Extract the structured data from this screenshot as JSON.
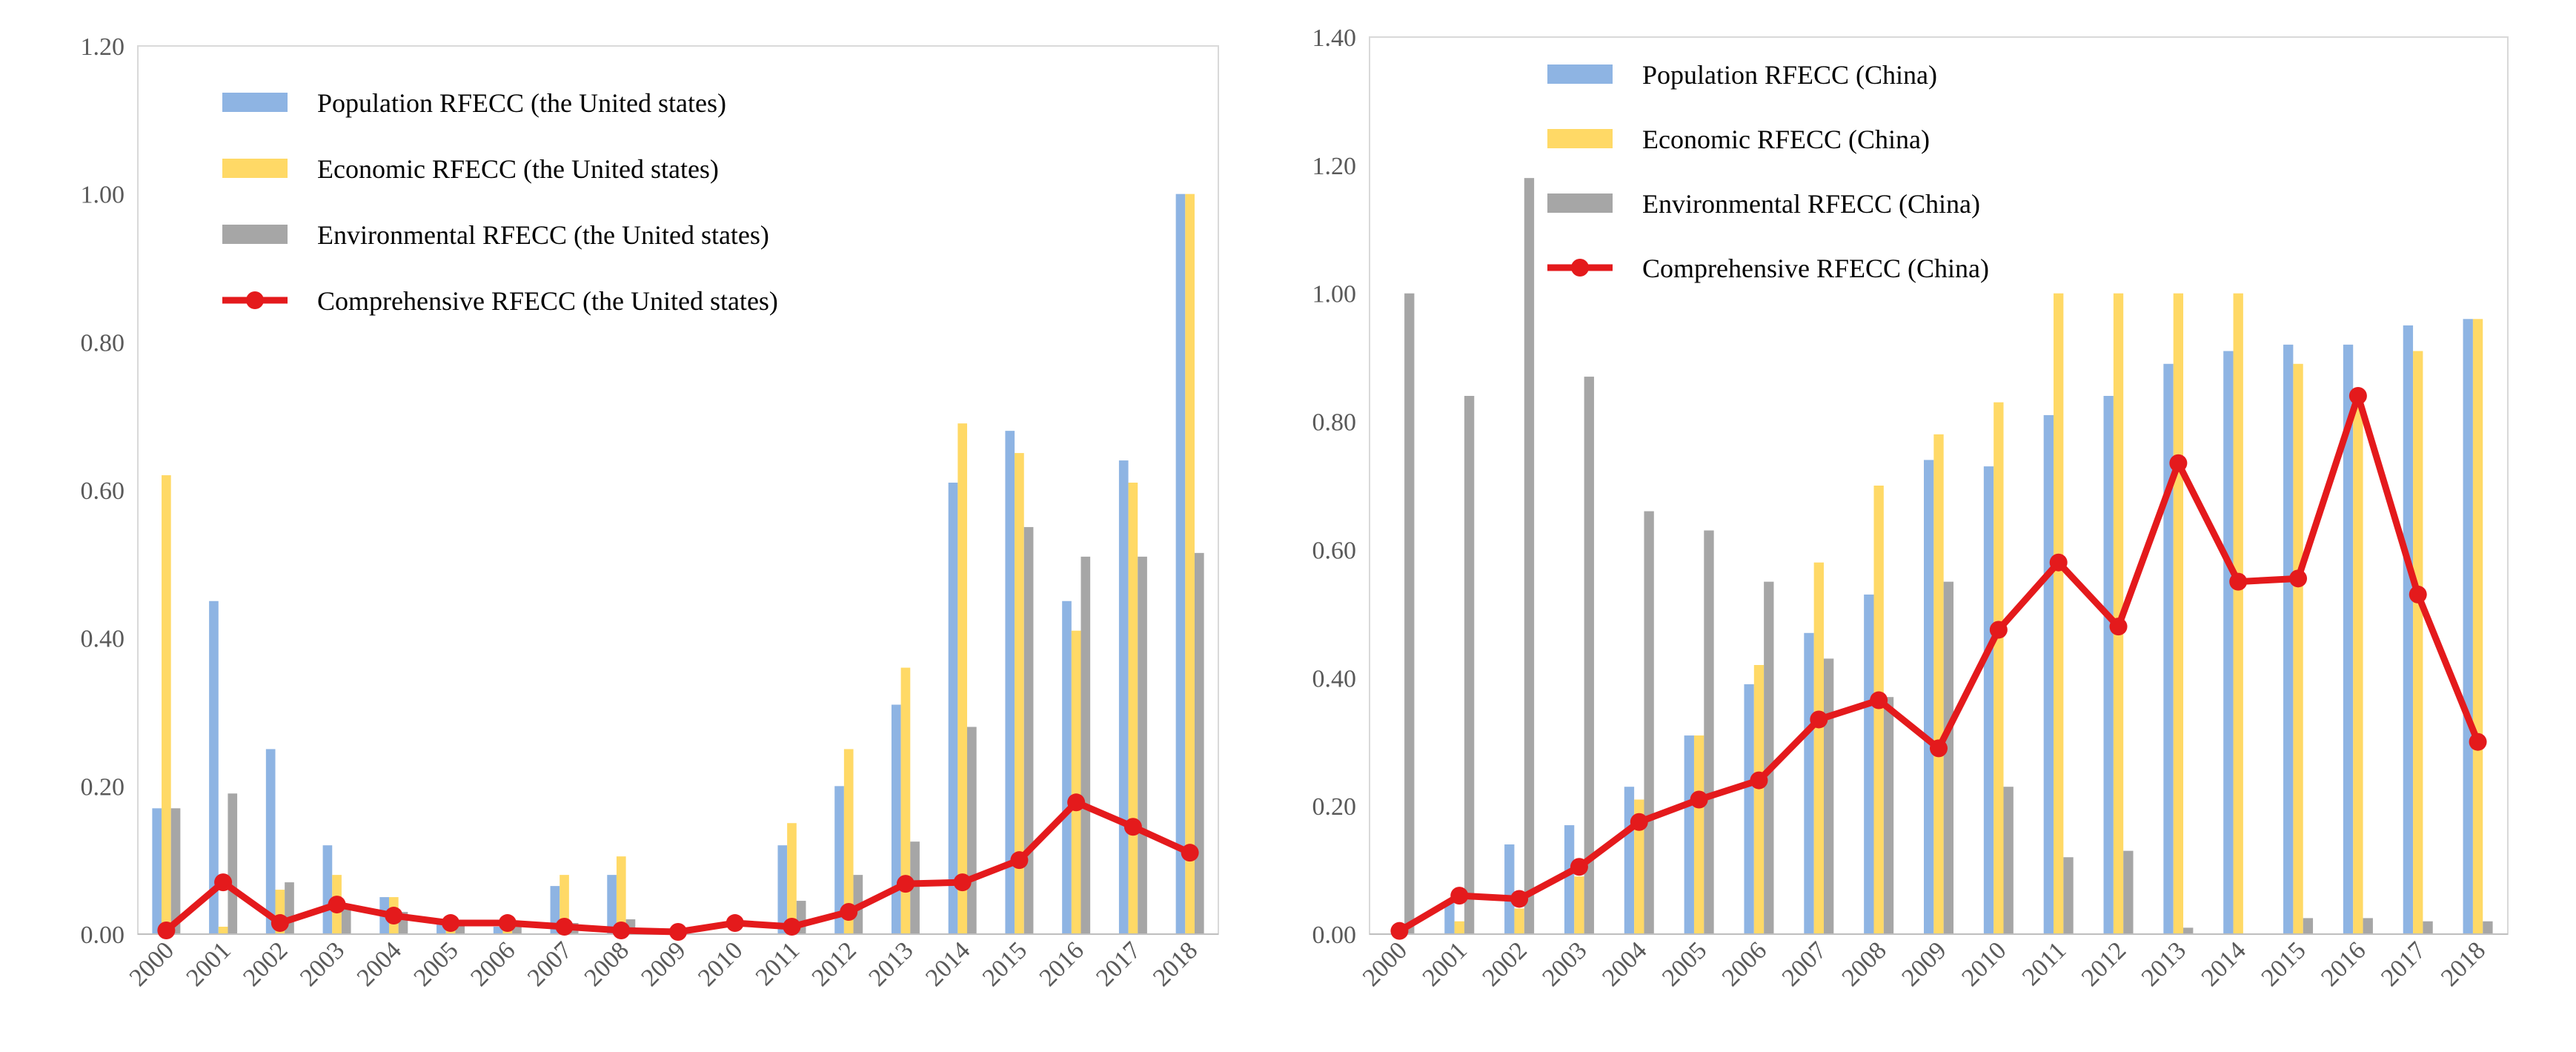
{
  "chart_data": [
    {
      "type": "bar",
      "id": "us",
      "title": "",
      "xlabel": "",
      "ylabel": "",
      "ylim": [
        0,
        1.2
      ],
      "yticks": [
        "0.00",
        "0.20",
        "0.40",
        "0.60",
        "0.80",
        "1.00",
        "1.20"
      ],
      "categories": [
        "2000",
        "2001",
        "2002",
        "2003",
        "2004",
        "2005",
        "2006",
        "2007",
        "2008",
        "2009",
        "2010",
        "2011",
        "2012",
        "2013",
        "2014",
        "2015",
        "2016",
        "2017",
        "2018"
      ],
      "series": [
        {
          "name": "Population RFECC (the United states)",
          "kind": "bar",
          "color": "#8EB4E3",
          "values": [
            0.17,
            0.45,
            0.25,
            0.12,
            0.05,
            0.015,
            0.01,
            0.065,
            0.08,
            0.0,
            0.0,
            0.12,
            0.2,
            0.31,
            0.61,
            0.68,
            0.45,
            0.64,
            1.0
          ]
        },
        {
          "name": "Economic RFECC (the United states)",
          "kind": "bar",
          "color": "#FFD966",
          "values": [
            0.62,
            0.01,
            0.06,
            0.08,
            0.05,
            0.015,
            0.01,
            0.08,
            0.105,
            0.0,
            0.0,
            0.15,
            0.25,
            0.36,
            0.69,
            0.65,
            0.41,
            0.61,
            1.0
          ]
        },
        {
          "name": "Environmental   RFECC (the United states)",
          "kind": "bar",
          "color": "#A6A6A6",
          "values": [
            0.17,
            0.19,
            0.07,
            0.04,
            0.03,
            0.015,
            0.01,
            0.015,
            0.02,
            0.0,
            0.0,
            0.045,
            0.08,
            0.125,
            0.28,
            0.55,
            0.51,
            0.51,
            0.515
          ]
        },
        {
          "name": "Comprehensive RFECC (the United states)",
          "kind": "line",
          "color": "#E41A1C",
          "values": [
            0.005,
            0.07,
            0.015,
            0.04,
            0.025,
            0.015,
            0.015,
            0.01,
            0.005,
            0.003,
            0.015,
            0.01,
            0.03,
            0.068,
            0.07,
            0.1,
            0.178,
            0.145,
            0.11
          ]
        }
      ]
    },
    {
      "type": "bar",
      "id": "china",
      "title": "",
      "xlabel": "",
      "ylabel": "",
      "ylim": [
        0,
        1.4
      ],
      "yticks": [
        "0.00",
        "0.20",
        "0.40",
        "0.60",
        "0.80",
        "1.00",
        "1.20",
        "1.40"
      ],
      "categories": [
        "2000",
        "2001",
        "2002",
        "2003",
        "2004",
        "2005",
        "2006",
        "2007",
        "2008",
        "2009",
        "2010",
        "2011",
        "2012",
        "2013",
        "2014",
        "2015",
        "2016",
        "2017",
        "2018"
      ],
      "series": [
        {
          "name": "Population RFECC (China)",
          "kind": "bar",
          "color": "#8EB4E3",
          "values": [
            0.0,
            0.05,
            0.14,
            0.17,
            0.23,
            0.31,
            0.39,
            0.47,
            0.53,
            0.74,
            0.73,
            0.81,
            0.84,
            0.89,
            0.91,
            0.92,
            0.92,
            0.95,
            0.96
          ]
        },
        {
          "name": "Economic RFECC (China)",
          "kind": "bar",
          "color": "#FFD966",
          "values": [
            0.0,
            0.02,
            0.04,
            0.09,
            0.21,
            0.31,
            0.42,
            0.58,
            0.7,
            0.78,
            0.83,
            1.0,
            1.0,
            1.0,
            1.0,
            0.89,
            0.84,
            0.91,
            0.96
          ]
        },
        {
          "name": "Environmental  RFECC (China)",
          "kind": "bar",
          "color": "#A6A6A6",
          "values": [
            1.0,
            0.84,
            1.18,
            0.87,
            0.66,
            0.63,
            0.55,
            0.43,
            0.37,
            0.55,
            0.23,
            0.12,
            0.13,
            0.01,
            0.0,
            0.025,
            0.025,
            0.02,
            0.02
          ]
        },
        {
          "name": "Comprehensive RFECC (China)",
          "kind": "line",
          "color": "#E41A1C",
          "values": [
            0.005,
            0.06,
            0.055,
            0.105,
            0.175,
            0.21,
            0.24,
            0.335,
            0.365,
            0.29,
            0.475,
            0.58,
            0.48,
            0.735,
            0.55,
            0.555,
            0.84,
            0.53,
            0.3
          ]
        }
      ]
    }
  ]
}
